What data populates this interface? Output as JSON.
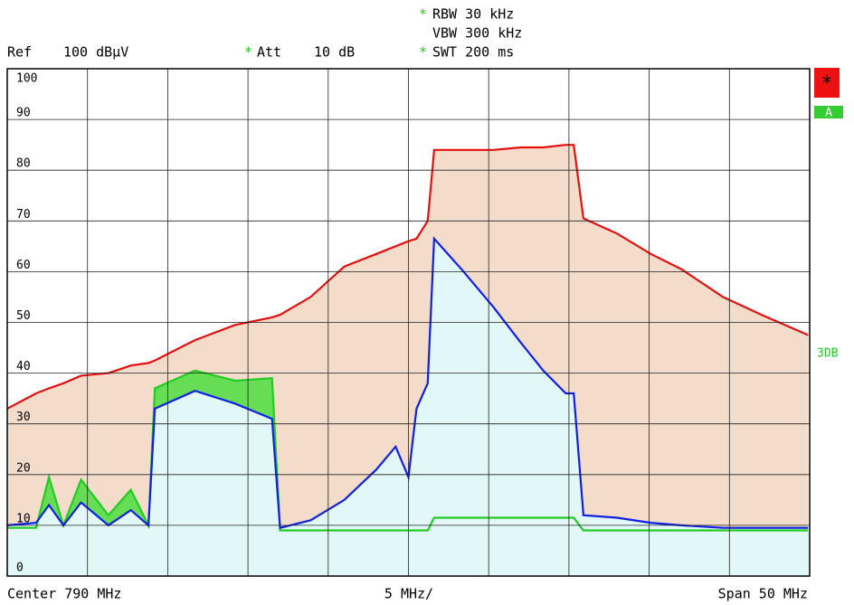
{
  "header": {
    "star": "*",
    "ref_label": "Ref",
    "ref_value": "100 dBµV",
    "att_label": "Att",
    "att_value": "10 dB",
    "rbw": "RBW 30 kHz",
    "vbw": "VBW 300 kHz",
    "swt": "SWT 200 ms"
  },
  "side": {
    "trace": "A",
    "marker": "3DB"
  },
  "footer": {
    "center": "Center 790 MHz",
    "div": "5 MHz/",
    "span": "Span 50 MHz"
  },
  "chart_data": {
    "type": "line",
    "x": [
      765.0,
      766.8,
      767.6,
      768.5,
      769.6,
      771.3,
      772.7,
      773.8,
      774.2,
      776.7,
      779.2,
      781.5,
      782.0,
      783.9,
      786.0,
      788.0,
      789.2,
      790.0,
      790.5,
      791.2,
      791.6,
      793.3,
      795.3,
      797.0,
      798.4,
      799.8,
      800.3,
      800.9,
      803.0,
      805.1,
      807.0,
      809.6,
      812.0,
      814.9
    ],
    "series": [
      {
        "color": "#e41010",
        "fill": "#f4dccb",
        "values": [
          33,
          36,
          37,
          38,
          39.5,
          40,
          41.5,
          42,
          42.5,
          46.5,
          49.5,
          51,
          51.5,
          55,
          61,
          63.5,
          65,
          66,
          66.5,
          70,
          84,
          84,
          84,
          84.5,
          84.5,
          85,
          85,
          70.5,
          67.5,
          63.5,
          60.5,
          55,
          51.5,
          47.5
        ]
      },
      {
        "color": "#22cc22",
        "fill": "#66dd55",
        "values": [
          9.5,
          9.5,
          19.5,
          10,
          19,
          12,
          17,
          10,
          37,
          40.5,
          38.5,
          39,
          9,
          9,
          9,
          9,
          9,
          9,
          9,
          9,
          11.5,
          11.5,
          11.5,
          11.5,
          11.5,
          11.5,
          11.5,
          9,
          9,
          9,
          9,
          9,
          9,
          9
        ]
      },
      {
        "color": "#1020e0",
        "fill": "#e2f8f8",
        "values": [
          10,
          10.5,
          14,
          10,
          14.5,
          10,
          13,
          10,
          33,
          36.5,
          34,
          31,
          9.5,
          11,
          15,
          21,
          25.5,
          19.5,
          33,
          38,
          66.5,
          60.5,
          53,
          46,
          40.5,
          36,
          36,
          12,
          11.5,
          10.5,
          10,
          9.5,
          9.5,
          9.5
        ]
      }
    ],
    "xlim": [
      765,
      815
    ],
    "xticks": [
      765,
      770,
      775,
      780,
      785,
      790,
      795,
      800,
      805,
      810,
      815
    ],
    "ylim": [
      0,
      100
    ],
    "yticks": [
      0,
      10,
      20,
      30,
      40,
      50,
      60,
      70,
      80,
      90,
      100
    ],
    "grid": true
  }
}
